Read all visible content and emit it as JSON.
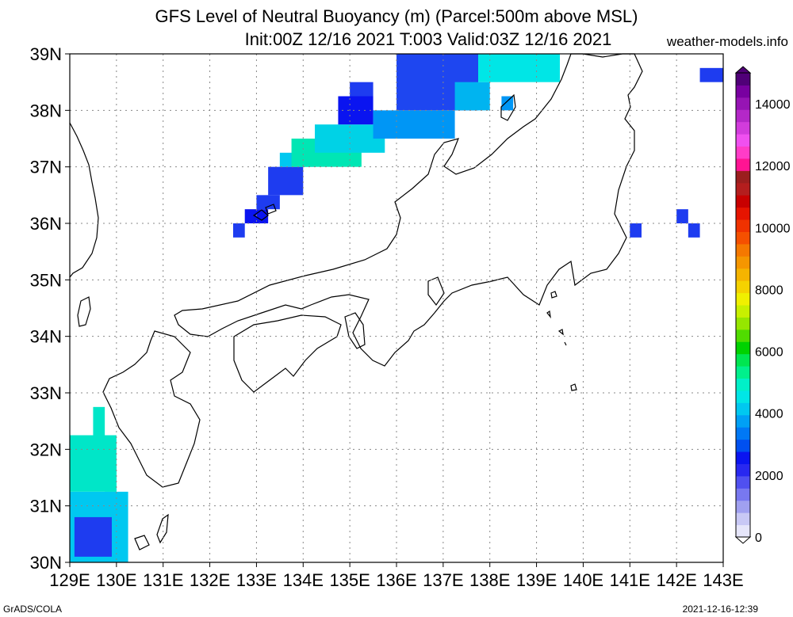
{
  "header": {
    "title_line1": "GFS Level of Neutral Buoyancy (m) (Parcel:500m above MSL)",
    "title_line2": "Init:00Z 12/16 2021 T:003 Valid:03Z 12/16 2021",
    "site": "weather-models.info"
  },
  "footer": {
    "left": "GrADS/COLA",
    "right": "2021-12-16-12:39"
  },
  "map": {
    "lon_labels": [
      "129E",
      "130E",
      "131E",
      "132E",
      "133E",
      "134E",
      "135E",
      "136E",
      "137E",
      "138E",
      "139E",
      "140E",
      "141E",
      "142E",
      "143E"
    ],
    "lat_labels": [
      "30N",
      "31N",
      "32N",
      "33N",
      "34N",
      "35N",
      "36N",
      "37N",
      "38N",
      "39N"
    ],
    "lon_range": [
      129,
      143
    ],
    "lat_range": [
      30,
      39
    ],
    "grid": "dotted",
    "units": "m"
  },
  "colorbar": {
    "labels": [
      "0",
      "2000",
      "4000",
      "6000",
      "8000",
      "10000",
      "12000",
      "14000"
    ],
    "colors": [
      "#e6e6fa",
      "#c8c8f5",
      "#a0a0f0",
      "#7878f0",
      "#5050f0",
      "#2828f0",
      "#0a14f0",
      "#0050f0",
      "#0078f5",
      "#00a0f5",
      "#00c8f0",
      "#00e6e6",
      "#00f0c8",
      "#00f08c",
      "#00e650",
      "#00d200",
      "#50dc00",
      "#96e600",
      "#c8f000",
      "#f0f000",
      "#f5d200",
      "#f5b400",
      "#f59600",
      "#f57800",
      "#f55000",
      "#f03200",
      "#e61400",
      "#c80000",
      "#b41e1e",
      "#9b1e1e",
      "#ff1493",
      "#ff3cc8",
      "#f050f0",
      "#d23cdc",
      "#b428c8",
      "#9614b4",
      "#7800a0",
      "#500078"
    ],
    "position": "right"
  },
  "fields": [
    {
      "lon": 129.0,
      "lat": 30.0,
      "lon2": 130.25,
      "lat2": 31.25,
      "color": "#00c8f0"
    },
    {
      "lon": 129.1,
      "lat": 30.1,
      "lon2": 129.9,
      "lat2": 30.8,
      "color": "#1e3cf0"
    },
    {
      "lon": 129.0,
      "lat": 31.25,
      "lon2": 130.0,
      "lat2": 32.25,
      "color": "#00e6c8"
    },
    {
      "lon": 129.5,
      "lat": 32.25,
      "lon2": 129.75,
      "lat2": 32.75,
      "color": "#00e6c8"
    },
    {
      "lon": 129.75,
      "lat": 31.25,
      "lon2": 130.0,
      "lat2": 31.75,
      "color": "#00e6c8"
    },
    {
      "lon": 132.5,
      "lat": 35.75,
      "lon2": 132.75,
      "lat2": 36.0,
      "color": "#1e3cf0"
    },
    {
      "lon": 132.75,
      "lat": 36.0,
      "lon2": 133.25,
      "lat2": 36.25,
      "color": "#0a14f0"
    },
    {
      "lon": 133.0,
      "lat": 36.25,
      "lon2": 133.5,
      "lat2": 36.5,
      "color": "#1e3cf0"
    },
    {
      "lon": 133.25,
      "lat": 36.5,
      "lon2": 134.0,
      "lat2": 37.0,
      "color": "#1e3cf0"
    },
    {
      "lon": 133.5,
      "lat": 37.0,
      "lon2": 134.25,
      "lat2": 37.25,
      "color": "#00c8f0"
    },
    {
      "lon": 133.75,
      "lat": 37.0,
      "lon2": 135.25,
      "lat2": 37.5,
      "color": "#00e6b4"
    },
    {
      "lon": 134.25,
      "lat": 37.25,
      "lon2": 135.75,
      "lat2": 37.75,
      "color": "#00d2e6"
    },
    {
      "lon": 134.75,
      "lat": 37.75,
      "lon2": 135.5,
      "lat2": 38.25,
      "color": "#0a14f0"
    },
    {
      "lon": 135.0,
      "lat": 38.25,
      "lon2": 135.5,
      "lat2": 38.5,
      "color": "#1e3cf0"
    },
    {
      "lon": 135.5,
      "lat": 37.5,
      "lon2": 137.25,
      "lat2": 38.0,
      "color": "#0096f5"
    },
    {
      "lon": 136.0,
      "lat": 38.0,
      "lon2": 137.75,
      "lat2": 39.0,
      "color": "#1e46f0"
    },
    {
      "lon": 137.25,
      "lat": 38.0,
      "lon2": 138.0,
      "lat2": 38.5,
      "color": "#00b4f0"
    },
    {
      "lon": 137.75,
      "lat": 38.5,
      "lon2": 139.5,
      "lat2": 39.0,
      "color": "#00e6e6"
    },
    {
      "lon": 138.25,
      "lat": 38.0,
      "lon2": 138.5,
      "lat2": 38.25,
      "color": "#0096f5"
    },
    {
      "lon": 142.5,
      "lat": 38.5,
      "lon2": 143.0,
      "lat2": 38.75,
      "color": "#1e3cf0"
    },
    {
      "lon": 141.0,
      "lat": 35.75,
      "lon2": 141.25,
      "lat2": 36.0,
      "color": "#1e3cf0"
    },
    {
      "lon": 142.0,
      "lat": 36.0,
      "lon2": 142.25,
      "lat2": 36.25,
      "color": "#1e3cf0"
    },
    {
      "lon": 142.25,
      "lat": 35.75,
      "lon2": 142.5,
      "lat2": 36.0,
      "color": "#1e3cf0"
    }
  ]
}
